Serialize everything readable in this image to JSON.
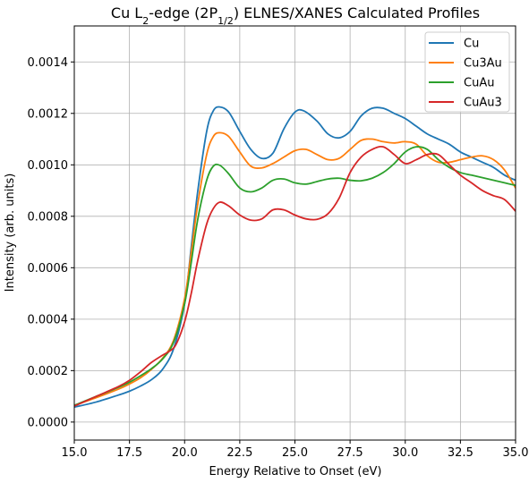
{
  "chart_data": {
    "type": "line",
    "title_main": "Cu L",
    "title_sub": "2",
    "title_mid": "-edge (2P",
    "title_sub2": "1/2",
    "title_end": ") ELNES/XANES Calculated Profiles",
    "xlabel": "Energy Relative to Onset (eV)",
    "ylabel": "Intensity (arb. units)",
    "xlim": [
      15.0,
      35.0
    ],
    "ylim": [
      -7e-05,
      0.00154
    ],
    "x_ticks": [
      15.0,
      17.5,
      20.0,
      22.5,
      25.0,
      27.5,
      30.0,
      32.5,
      35.0
    ],
    "x_tick_labels": [
      "15.0",
      "17.5",
      "20.0",
      "22.5",
      "25.0",
      "27.5",
      "30.0",
      "32.5",
      "35.0"
    ],
    "y_ticks": [
      0.0,
      0.0002,
      0.0004,
      0.0006,
      0.0008,
      0.001,
      0.0012,
      0.0014
    ],
    "y_tick_labels": [
      "0.0000",
      "0.0002",
      "0.0004",
      "0.0006",
      "0.0008",
      "0.0010",
      "0.0012",
      "0.0014"
    ],
    "grid": true,
    "legend_position": "top-right",
    "series": [
      {
        "name": "Cu",
        "color": "#1f77b4",
        "x": [
          15.0,
          16.0,
          17.0,
          17.5,
          18.0,
          18.5,
          19.0,
          19.5,
          20.0,
          20.3,
          20.6,
          21.0,
          21.3,
          21.6,
          22.0,
          22.5,
          23.0,
          23.5,
          24.0,
          24.5,
          25.0,
          25.4,
          26.0,
          26.5,
          27.0,
          27.5,
          28.0,
          28.5,
          29.0,
          29.5,
          30.0,
          30.5,
          31.0,
          31.5,
          32.0,
          32.5,
          33.0,
          33.5,
          34.0,
          34.5,
          35.0
        ],
        "y": [
          5.8e-05,
          7.8e-05,
          0.000105,
          0.00012,
          0.00014,
          0.000165,
          0.000205,
          0.000285,
          0.00046,
          0.00068,
          0.0009,
          0.00113,
          0.00121,
          0.001225,
          0.001205,
          0.00113,
          0.00106,
          0.001025,
          0.001045,
          0.00114,
          0.001205,
          0.00121,
          0.00117,
          0.00112,
          0.001105,
          0.00113,
          0.00119,
          0.00122,
          0.00122,
          0.0012,
          0.00118,
          0.00115,
          0.00112,
          0.0011,
          0.00108,
          0.00105,
          0.00103,
          0.00101,
          0.00099,
          0.00096,
          0.00094
        ]
      },
      {
        "name": "Cu3Au",
        "color": "#ff7f0e",
        "x": [
          15.0,
          16.0,
          17.0,
          17.5,
          18.0,
          18.5,
          19.0,
          19.5,
          20.0,
          20.3,
          20.6,
          21.0,
          21.3,
          21.6,
          22.0,
          22.5,
          23.0,
          23.5,
          24.0,
          24.5,
          25.0,
          25.5,
          26.0,
          26.5,
          27.0,
          27.5,
          28.0,
          28.5,
          29.0,
          29.5,
          30.0,
          30.5,
          31.0,
          31.5,
          32.0,
          32.5,
          33.0,
          33.5,
          34.0,
          34.5,
          35.0
        ],
        "y": [
          6.5e-05,
          9.5e-05,
          0.000128,
          0.000148,
          0.000172,
          0.000205,
          0.000248,
          0.000318,
          0.00048,
          0.00066,
          0.00085,
          0.00104,
          0.00111,
          0.001125,
          0.00111,
          0.00105,
          0.000995,
          0.000988,
          0.001005,
          0.00103,
          0.001055,
          0.00106,
          0.00104,
          0.00102,
          0.001025,
          0.00106,
          0.001095,
          0.0011,
          0.00109,
          0.001085,
          0.00109,
          0.00108,
          0.001035,
          0.00101,
          0.00101,
          0.00102,
          0.00103,
          0.001035,
          0.00102,
          0.00098,
          0.00091
        ]
      },
      {
        "name": "CuAu",
        "color": "#2ca02c",
        "x": [
          15.0,
          16.0,
          17.0,
          17.5,
          18.0,
          18.5,
          19.0,
          19.5,
          20.0,
          20.3,
          20.6,
          21.0,
          21.3,
          21.6,
          22.0,
          22.5,
          23.0,
          23.5,
          24.0,
          24.5,
          25.0,
          25.5,
          26.0,
          26.5,
          27.0,
          27.5,
          28.0,
          28.5,
          29.0,
          29.5,
          30.0,
          30.5,
          31.0,
          31.5,
          32.0,
          32.5,
          33.0,
          33.5,
          34.0,
          34.5,
          35.0
        ],
        "y": [
          6.5e-05,
          0.0001,
          0.000135,
          0.000155,
          0.00018,
          0.000208,
          0.000245,
          0.00031,
          0.00046,
          0.00062,
          0.00079,
          0.00094,
          0.000995,
          0.000998,
          0.000965,
          0.00091,
          0.000895,
          0.00091,
          0.00094,
          0.000945,
          0.00093,
          0.000925,
          0.000935,
          0.000945,
          0.000948,
          0.00094,
          0.000938,
          0.000948,
          0.00097,
          0.001005,
          0.00105,
          0.00107,
          0.00106,
          0.00102,
          0.00099,
          0.00097,
          0.00096,
          0.00095,
          0.00094,
          0.00093,
          0.00092
        ]
      },
      {
        "name": "CuAu3",
        "color": "#d62728",
        "x": [
          15.0,
          16.0,
          17.0,
          17.5,
          18.0,
          18.5,
          19.0,
          19.3,
          19.6,
          20.0,
          20.3,
          20.6,
          21.0,
          21.3,
          21.6,
          22.0,
          22.5,
          23.0,
          23.5,
          24.0,
          24.5,
          25.0,
          25.5,
          26.0,
          26.5,
          27.0,
          27.5,
          28.0,
          28.5,
          29.0,
          29.5,
          30.0,
          30.5,
          31.0,
          31.5,
          32.0,
          32.5,
          33.0,
          33.5,
          34.0,
          34.5,
          35.0
        ],
        "y": [
          6.2e-05,
          0.0001,
          0.000138,
          0.000162,
          0.000195,
          0.000232,
          0.00026,
          0.000275,
          0.0003,
          0.00039,
          0.0005,
          0.00063,
          0.00077,
          0.00083,
          0.000855,
          0.00084,
          0.000805,
          0.000785,
          0.00079,
          0.000825,
          0.000825,
          0.000805,
          0.00079,
          0.000788,
          0.00081,
          0.00087,
          0.00097,
          0.00103,
          0.00106,
          0.00107,
          0.00104,
          0.001005,
          0.00102,
          0.00104,
          0.00104,
          0.001,
          0.00096,
          0.00093,
          0.0009,
          0.00088,
          0.000865,
          0.00082
        ]
      }
    ]
  }
}
